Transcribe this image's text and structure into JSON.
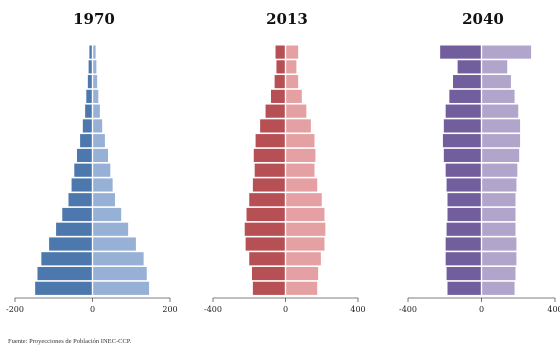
{
  "chart_data": [
    {
      "type": "bar",
      "title": "1970",
      "xlim": [
        -200,
        200
      ],
      "xticks": [
        "-200",
        "0",
        "200"
      ],
      "colors": {
        "left": "#4d78ad",
        "right": "#97b0d6"
      },
      "left": [
        8,
        10,
        12,
        16,
        19,
        25,
        32,
        40,
        47,
        54,
        62,
        78,
        94,
        112,
        132,
        142,
        148
      ],
      "right": [
        8,
        10,
        12,
        15,
        19,
        25,
        32,
        40,
        46,
        52,
        58,
        74,
        92,
        112,
        132,
        140,
        146
      ]
    },
    {
      "type": "bar",
      "title": "2013",
      "xlim": [
        -400,
        400
      ],
      "xticks": [
        "-400",
        "0",
        "400"
      ],
      "colors": {
        "left": "#b65055",
        "right": "#e4a0a3"
      },
      "left": [
        55,
        50,
        60,
        80,
        110,
        140,
        165,
        175,
        170,
        180,
        200,
        215,
        225,
        220,
        200,
        185,
        180
      ],
      "right": [
        70,
        60,
        70,
        90,
        115,
        140,
        160,
        165,
        160,
        175,
        200,
        215,
        220,
        215,
        195,
        180,
        175
      ]
    },
    {
      "type": "bar",
      "title": "2040",
      "xlim": [
        -400,
        400
      ],
      "xticks": [
        "-400",
        "0",
        "400"
      ],
      "colors": {
        "left": "#725e9c",
        "right": "#b1a5cc"
      },
      "left": [
        225,
        130,
        155,
        175,
        195,
        205,
        210,
        205,
        195,
        190,
        185,
        185,
        190,
        195,
        195,
        190,
        185
      ],
      "right": [
        270,
        140,
        160,
        180,
        200,
        210,
        210,
        205,
        195,
        190,
        185,
        185,
        185,
        190,
        190,
        185,
        180
      ]
    }
  ],
  "source": "Fuente: Proyecciones de Población INEC-CCP."
}
